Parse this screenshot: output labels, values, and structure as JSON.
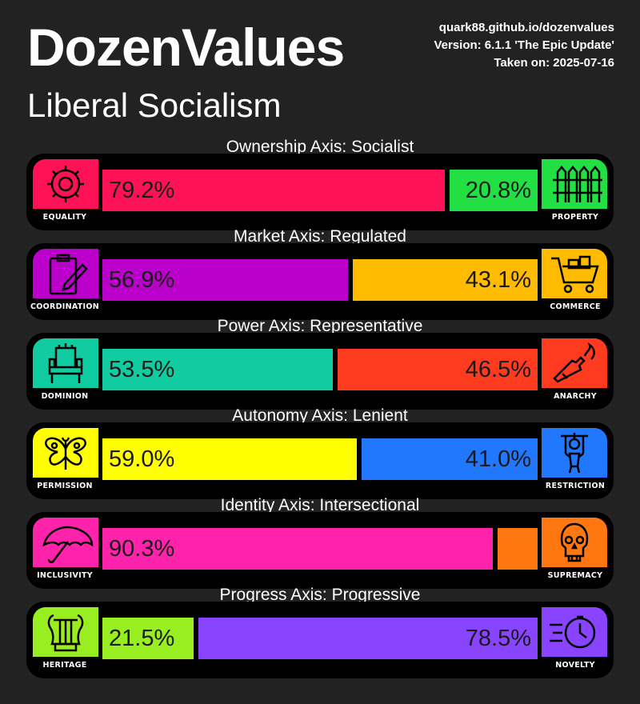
{
  "header": {
    "title": "DozenValues",
    "ideology": "Liberal Socialism",
    "url": "quark88.github.io/dozenvalues",
    "version": "Version: 6.1.1 'The Epic Update'",
    "taken": "Taken on: 2025-07-16"
  },
  "axes": [
    {
      "title": "Ownership Axis: Socialist",
      "left": {
        "label": "EQUALITY",
        "icon": "gear-icon",
        "color": "#ff1155",
        "percent": 79.2,
        "text": "79.2%"
      },
      "right": {
        "label": "PROPERTY",
        "icon": "fence-icon",
        "color": "#22e044",
        "percent": 20.8,
        "text": "20.8%"
      }
    },
    {
      "title": "Market Axis: Regulated",
      "left": {
        "label": "COORDINATION",
        "icon": "clipboard-pen-icon",
        "color": "#bb00cc",
        "percent": 56.9,
        "text": "56.9%"
      },
      "right": {
        "label": "COMMERCE",
        "icon": "shopping-cart-icon",
        "color": "#ffbb00",
        "percent": 43.1,
        "text": "43.1%"
      }
    },
    {
      "title": "Power Axis: Representative",
      "left": {
        "label": "DOMINION",
        "icon": "throne-icon",
        "color": "#11cca0",
        "percent": 53.5,
        "text": "53.5%"
      },
      "right": {
        "label": "ANARCHY",
        "icon": "molotov-icon",
        "color": "#ff3b1f",
        "percent": 46.5,
        "text": "46.5%"
      }
    },
    {
      "title": "Autonomy Axis: Lenient",
      "left": {
        "label": "PERMISSION",
        "icon": "butterfly-icon",
        "color": "#ffff00",
        "percent": 59.0,
        "text": "59.0%"
      },
      "right": {
        "label": "RESTRICTION",
        "icon": "puppet-icon",
        "color": "#2277ff",
        "percent": 41.0,
        "text": "41.0%"
      }
    },
    {
      "title": "Identity Axis: Intersectional",
      "left": {
        "label": "INCLUSIVITY",
        "icon": "umbrella-icon",
        "color": "#ff22aa",
        "percent": 90.3,
        "text": "90.3%"
      },
      "right": {
        "label": "SUPREMACY",
        "icon": "skull-icon",
        "color": "#ff7711",
        "percent": 9.7,
        "text": ""
      }
    },
    {
      "title": "Progress Axis: Progressive",
      "left": {
        "label": "HERITAGE",
        "icon": "lyre-icon",
        "color": "#99ee22",
        "percent": 21.5,
        "text": "21.5%"
      },
      "right": {
        "label": "NOVELTY",
        "icon": "clock-speed-icon",
        "color": "#8844ff",
        "percent": 78.5,
        "text": "78.5%"
      }
    }
  ]
}
